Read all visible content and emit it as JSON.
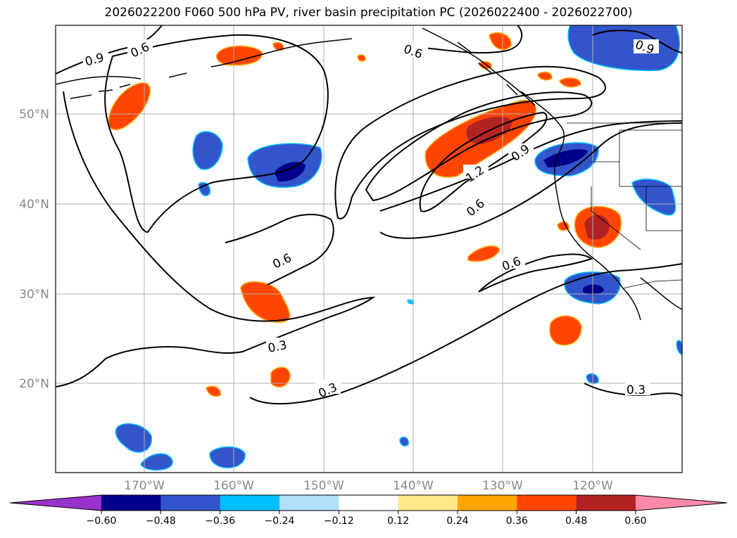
{
  "title": "2026022200 F060 500 hPa PV, river basin precipitation PC (2026022400 - 2026022700)",
  "lat_labels": [
    "50°N",
    "40°N",
    "30°N",
    "20°N"
  ],
  "lon_labels": [
    "170°W",
    "160°W",
    "150°W",
    "140°W",
    "130°W",
    "120°W"
  ],
  "contour_labels": [
    "0.9",
    "0.6",
    "0.6",
    "0.9",
    "1.2",
    "0.9",
    "0.6",
    "0.6",
    "0.6",
    "0.3",
    "0.3",
    "0.3"
  ],
  "colorbar": {
    "ticks": [
      "−0.60",
      "−0.48",
      "−0.36",
      "−0.24",
      "−0.12",
      "0.12",
      "0.24",
      "0.36",
      "0.48",
      "0.60"
    ],
    "colors": [
      "#9932cc",
      "#00008b",
      "#3355cc",
      "#00bfff",
      "#b0e0f8",
      "#ffffff",
      "#ffe88a",
      "#ffa500",
      "#ff4500",
      "#b22222",
      "#ff88aa"
    ]
  }
}
